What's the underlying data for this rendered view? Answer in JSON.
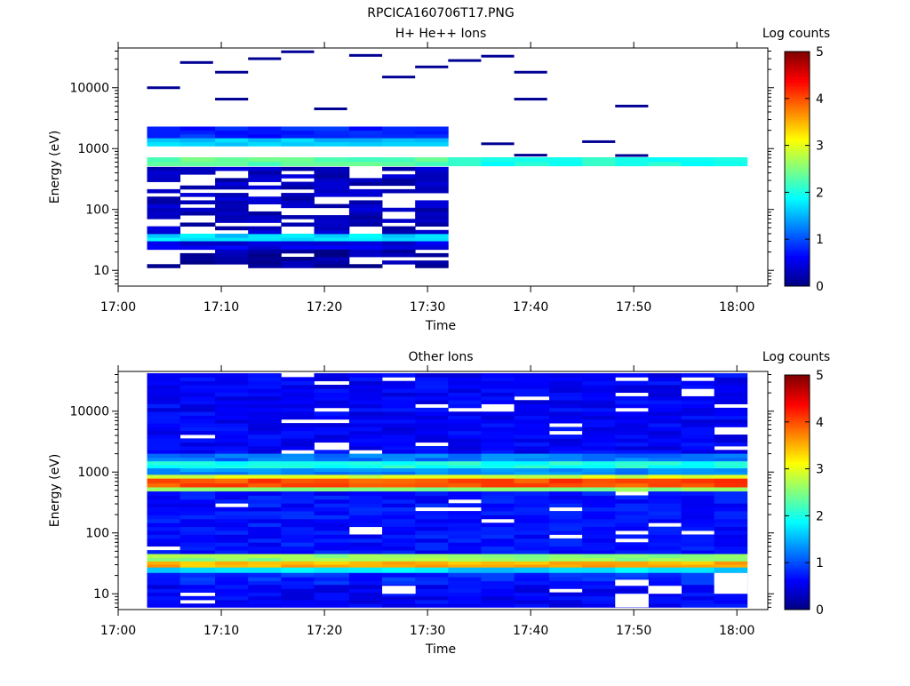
{
  "figure_title": "RPCICA160706T17.PNG",
  "colors": {
    "colormap": [
      "#000080",
      "#0000ff",
      "#0080ff",
      "#00ffff",
      "#80ff80",
      "#ffff00",
      "#ff8000",
      "#ff0000",
      "#800000"
    ],
    "axis": "#000000",
    "background": "#ffffff"
  },
  "chart_data": [
    {
      "type": "heatmap",
      "title": "H+ He++ Ions",
      "xlabel": "Time",
      "ylabel": "Energy (eV)",
      "x_ticks": [
        "17:00",
        "17:10",
        "17:20",
        "17:30",
        "17:40",
        "17:50",
        "18:00"
      ],
      "xlim_minutes": [
        0,
        63
      ],
      "y_scale": "log",
      "y_ticks": [
        "10",
        "100",
        "1000",
        "10000"
      ],
      "ylim": [
        5.5,
        45000
      ],
      "colorbar": {
        "label": "Log counts",
        "min": 0,
        "max": 5,
        "ticks": [
          "0",
          "1",
          "2",
          "3",
          "4",
          "5"
        ]
      },
      "time_bins_start_minutes": [
        2.8,
        6.0,
        9.4,
        12.6,
        15.8,
        19.0,
        22.4,
        25.6,
        28.8,
        32.0,
        35.2,
        38.4,
        41.8,
        45.0,
        48.2,
        51.4,
        54.6,
        57.8
      ],
      "bands": [
        {
          "e_min": 520,
          "e_max": 720,
          "value": 2.3,
          "bins_from": 0,
          "bins_to": 8
        },
        {
          "e_min": 520,
          "e_max": 720,
          "value": 2.0,
          "bins_from": 9,
          "bins_to": 17
        },
        {
          "e_min": 1100,
          "e_max": 1500,
          "value": 1.6,
          "bins_from": 0,
          "bins_to": 8
        },
        {
          "e_min": 1500,
          "e_max": 2300,
          "value": 0.8,
          "bins_from": 0,
          "bins_to": 8
        },
        {
          "e_min": 30,
          "e_max": 40,
          "value": 1.7,
          "bins_from": 0,
          "bins_to": 8
        },
        {
          "e_min": 22,
          "e_max": 30,
          "value": 0.5,
          "bins_from": 0,
          "bins_to": 8
        },
        {
          "e_min": 40,
          "e_max": 500,
          "value": 0.3,
          "bins_from": 0,
          "bins_to": 8
        },
        {
          "e_min": 11,
          "e_max": 22,
          "value": 0.2,
          "bins_from": 0,
          "bins_to": 8
        }
      ],
      "isolated_hits": [
        {
          "bin": 0,
          "e": 10000,
          "value": 0.1
        },
        {
          "bin": 1,
          "e": 26000,
          "value": 0.1
        },
        {
          "bin": 2,
          "e": 18000,
          "value": 0.1
        },
        {
          "bin": 2,
          "e": 6500,
          "value": 0.1
        },
        {
          "bin": 3,
          "e": 30000,
          "value": 0.1
        },
        {
          "bin": 4,
          "e": 39000,
          "value": 0.1
        },
        {
          "bin": 5,
          "e": 4500,
          "value": 0.1
        },
        {
          "bin": 6,
          "e": 34000,
          "value": 0.1
        },
        {
          "bin": 7,
          "e": 15000,
          "value": 0.1
        },
        {
          "bin": 8,
          "e": 22000,
          "value": 0.1
        },
        {
          "bin": 9,
          "e": 28000,
          "value": 0.1
        },
        {
          "bin": 10,
          "e": 33000,
          "value": 0.1
        },
        {
          "bin": 10,
          "e": 1200,
          "value": 0.1
        },
        {
          "bin": 11,
          "e": 18000,
          "value": 0.1
        },
        {
          "bin": 11,
          "e": 6500,
          "value": 0.1
        },
        {
          "bin": 11,
          "e": 780,
          "value": 0.1
        },
        {
          "bin": 13,
          "e": 1300,
          "value": 0.1
        },
        {
          "bin": 14,
          "e": 5000,
          "value": 0.1
        },
        {
          "bin": 14,
          "e": 770,
          "value": 0.1
        }
      ]
    },
    {
      "type": "heatmap",
      "title": "Other Ions",
      "xlabel": "Time",
      "ylabel": "Energy (eV)",
      "x_ticks": [
        "17:00",
        "17:10",
        "17:20",
        "17:30",
        "17:40",
        "17:50",
        "18:00"
      ],
      "xlim_minutes": [
        0,
        63
      ],
      "y_scale": "log",
      "y_ticks": [
        "10",
        "100",
        "1000",
        "10000"
      ],
      "ylim": [
        5.5,
        45000
      ],
      "colorbar": {
        "label": "Log counts",
        "min": 0,
        "max": 5,
        "ticks": [
          "0",
          "1",
          "2",
          "3",
          "4",
          "5"
        ]
      },
      "time_bins_start_minutes": [
        2.8,
        6.0,
        9.4,
        12.6,
        15.8,
        19.0,
        22.4,
        25.6,
        28.8,
        32.0,
        35.2,
        38.4,
        41.8,
        45.0,
        48.2,
        51.4,
        54.6,
        57.8
      ],
      "bands": [
        {
          "e_min": 2000,
          "e_max": 42000,
          "value": 0.6,
          "bins_from": 0,
          "bins_to": 17
        },
        {
          "e_min": 1500,
          "e_max": 2000,
          "value": 1.2,
          "bins_from": 0,
          "bins_to": 17
        },
        {
          "e_min": 1150,
          "e_max": 1500,
          "value": 2.0,
          "bins_from": 0,
          "bins_to": 17
        },
        {
          "e_min": 900,
          "e_max": 1150,
          "value": 1.3,
          "bins_from": 0,
          "bins_to": 17
        },
        {
          "e_min": 780,
          "e_max": 900,
          "value": 2.9,
          "bins_from": 0,
          "bins_to": 17
        },
        {
          "e_min": 560,
          "e_max": 780,
          "value": 4.0,
          "bins_from": 0,
          "bins_to": 17
        },
        {
          "e_min": 480,
          "e_max": 560,
          "value": 2.5,
          "bins_from": 0,
          "bins_to": 17
        },
        {
          "e_min": 45,
          "e_max": 480,
          "value": 0.7,
          "bins_from": 0,
          "bins_to": 17
        },
        {
          "e_min": 34,
          "e_max": 45,
          "value": 2.6,
          "bins_from": 0,
          "bins_to": 17
        },
        {
          "e_min": 27,
          "e_max": 34,
          "value": 3.5,
          "bins_from": 0,
          "bins_to": 17
        },
        {
          "e_min": 22,
          "e_max": 27,
          "value": 1.7,
          "bins_from": 0,
          "bins_to": 17
        },
        {
          "e_min": 14,
          "e_max": 22,
          "value": 0.8,
          "bins_from": 0,
          "bins_to": 17
        },
        {
          "e_min": 6,
          "e_max": 14,
          "value": 0.6,
          "bins_from": 0,
          "bins_to": 17
        }
      ],
      "gaps": [
        {
          "bin": 7,
          "e_min": 10,
          "e_max": 13.5
        },
        {
          "bin": 15,
          "e_min": 10,
          "e_max": 13.5
        },
        {
          "bin": 14,
          "e_min": 6,
          "e_max": 10
        },
        {
          "bin": 14,
          "e_min": 13.5,
          "e_max": 17
        },
        {
          "bin": 17,
          "e_min": 10,
          "e_max": 22
        }
      ]
    }
  ]
}
